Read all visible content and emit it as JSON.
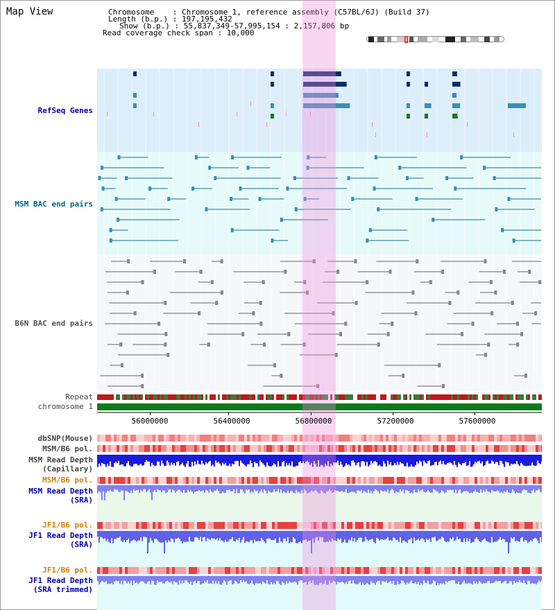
{
  "panel": {
    "title": "Map View"
  },
  "header": {
    "lines": [
      "Chromosome    : Chromosome 1, reference assembly (C57BL/6J) (Build 37)",
      "Length (b.p.) : 197,195,432",
      "Show (b.p.) : 55,837,349-57,995,154 : 2,157,806 bp",
      "Read coverage check span : 10,000"
    ]
  },
  "tracks": {
    "refseq": {
      "label": "RefSeq Genes",
      "color": "#0000aa"
    },
    "msm_bac": {
      "label": "MSM BAC end pairs",
      "color": "#006688"
    },
    "b6n_bac": {
      "label": "B6N BAC end pairs",
      "color": "#555555"
    },
    "repeat": {
      "label": "Repeat"
    },
    "chromosome": {
      "label": "chromosome 1"
    },
    "dbsnp": {
      "label": "dbSNP(Mouse)"
    },
    "msm_b6_pol_1": {
      "label": "MSM/B6 pol."
    },
    "msm_read_depth_cap": {
      "label": "MSM Read Depth\n(Capillary)"
    },
    "msm_b6_pol_2": {
      "label": "MSM/B6 pol.",
      "color": "#d08000"
    },
    "msm_read_depth_sra": {
      "label": "MSM Read Depth\n(SRA)",
      "color": "#0000aa"
    },
    "jf1_b6_pol_1": {
      "label": "JF1/B6 pol.",
      "color": "#d08000"
    },
    "jf1_read_depth_sra": {
      "label": "JF1 Read Depth\n(SRA)",
      "color": "#0000aa"
    },
    "jf1_b6_pol_2": {
      "label": "JF1/B6 pol.",
      "color": "#d08000"
    },
    "jf1_read_depth_trim": {
      "label": "JF1 Read Depth\n(SRA trimmed)",
      "color": "#0000aa"
    }
  },
  "axis": {
    "ticks": [
      "56000000",
      "56400000",
      "56800000",
      "57200000",
      "57600000"
    ]
  },
  "colors": {
    "refseq_bg": "#dceefa",
    "bac_bg": "#e0f8f8",
    "b6n_bg": "#f4f6f8",
    "highlight": "#f08cdc"
  }
}
